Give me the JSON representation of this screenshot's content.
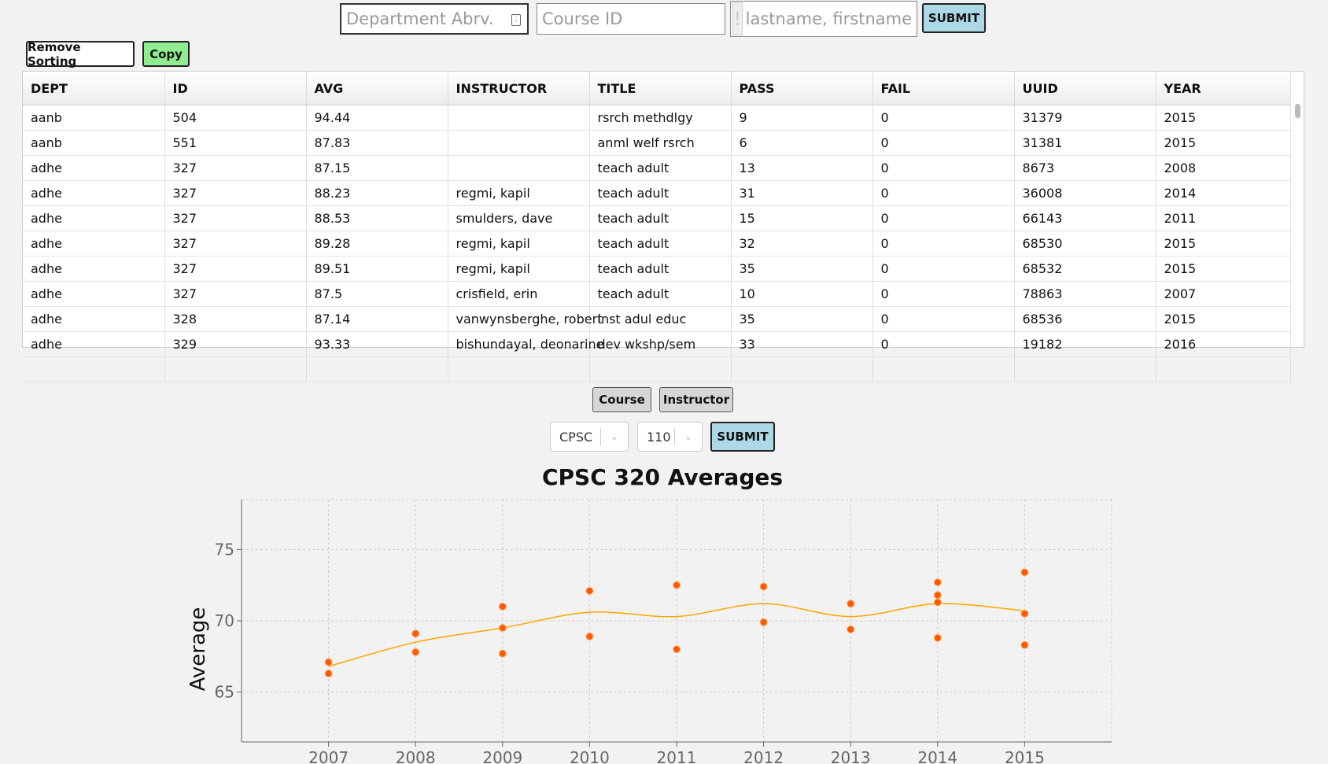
{
  "search": {
    "dept_placeholder": "Department Abrv.",
    "course_placeholder": "Course ID",
    "instructor_placeholder": "lastname, firstname",
    "submit_label": "SUBMIT"
  },
  "toolbar": {
    "remove_sorting_label": "Remove Sorting",
    "copy_label": "Copy"
  },
  "table": {
    "columns": [
      "DEPT",
      "ID",
      "AVG",
      "INSTRUCTOR",
      "TITLE",
      "PASS",
      "FAIL",
      "UUID",
      "YEAR"
    ],
    "rows": [
      [
        "aanb",
        "504",
        "94.44",
        "",
        "rsrch methdlgy",
        "9",
        "0",
        "31379",
        "2015"
      ],
      [
        "aanb",
        "551",
        "87.83",
        "",
        "anml welf rsrch",
        "6",
        "0",
        "31381",
        "2015"
      ],
      [
        "adhe",
        "327",
        "87.15",
        "",
        "teach adult",
        "13",
        "0",
        "8673",
        "2008"
      ],
      [
        "adhe",
        "327",
        "88.23",
        "regmi, kapil",
        "teach adult",
        "31",
        "0",
        "36008",
        "2014"
      ],
      [
        "adhe",
        "327",
        "88.53",
        "smulders, dave",
        "teach adult",
        "15",
        "0",
        "66143",
        "2011"
      ],
      [
        "adhe",
        "327",
        "89.28",
        "regmi, kapil",
        "teach adult",
        "32",
        "0",
        "68530",
        "2015"
      ],
      [
        "adhe",
        "327",
        "89.51",
        "regmi, kapil",
        "teach adult",
        "35",
        "0",
        "68532",
        "2015"
      ],
      [
        "adhe",
        "327",
        "87.5",
        "crisfield, erin",
        "teach adult",
        "10",
        "0",
        "78863",
        "2007"
      ],
      [
        "adhe",
        "328",
        "87.14",
        "vanwynsberghe, robert",
        "inst adul educ",
        "35",
        "0",
        "68536",
        "2015"
      ],
      [
        "adhe",
        "329",
        "93.33",
        "bishundayal, deonarine",
        "dev wkshp/sem",
        "33",
        "0",
        "19182",
        "2016"
      ]
    ]
  },
  "chart_controls": {
    "course_tab": "Course",
    "instructor_tab": "Instructor",
    "dept_select": "CPSC",
    "course_select": "110",
    "submit_label": "SUBMIT"
  },
  "colors": {
    "point": "#ff5a00",
    "trend": "#ffa500",
    "submit_bg": "#add8e6",
    "copy_bg": "#90ee90"
  },
  "chart_data": {
    "type": "scatter",
    "title": "CPSC 320 Averages",
    "xlabel": "",
    "ylabel": "Average",
    "xlim": [
      2006,
      2016
    ],
    "ylim": [
      61.5,
      78.5
    ],
    "yticks": [
      65,
      70,
      75
    ],
    "xticks": [
      2007,
      2008,
      2009,
      2010,
      2011,
      2012,
      2013,
      2014,
      2015
    ],
    "grid": true,
    "points": [
      {
        "x": 2007,
        "y": 67.1
      },
      {
        "x": 2007,
        "y": 66.3
      },
      {
        "x": 2008,
        "y": 69.1
      },
      {
        "x": 2008,
        "y": 67.8
      },
      {
        "x": 2009,
        "y": 71.0
      },
      {
        "x": 2009,
        "y": 69.5
      },
      {
        "x": 2009,
        "y": 67.7
      },
      {
        "x": 2010,
        "y": 72.1
      },
      {
        "x": 2010,
        "y": 68.9
      },
      {
        "x": 2011,
        "y": 72.5
      },
      {
        "x": 2011,
        "y": 68.0
      },
      {
        "x": 2012,
        "y": 72.4
      },
      {
        "x": 2012,
        "y": 69.9
      },
      {
        "x": 2013,
        "y": 71.2
      },
      {
        "x": 2013,
        "y": 69.4
      },
      {
        "x": 2014,
        "y": 72.7
      },
      {
        "x": 2014,
        "y": 71.8
      },
      {
        "x": 2014,
        "y": 71.3
      },
      {
        "x": 2014,
        "y": 68.8
      },
      {
        "x": 2015,
        "y": 73.4
      },
      {
        "x": 2015,
        "y": 70.5
      },
      {
        "x": 2015,
        "y": 68.3
      }
    ],
    "trend": [
      {
        "x": 2007,
        "y": 66.8
      },
      {
        "x": 2008,
        "y": 68.5
      },
      {
        "x": 2009,
        "y": 69.5
      },
      {
        "x": 2010,
        "y": 70.6
      },
      {
        "x": 2011,
        "y": 70.3
      },
      {
        "x": 2012,
        "y": 71.2
      },
      {
        "x": 2013,
        "y": 70.3
      },
      {
        "x": 2014,
        "y": 71.2
      },
      {
        "x": 2015,
        "y": 70.7
      }
    ]
  }
}
